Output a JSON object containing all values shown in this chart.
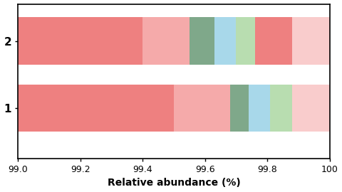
{
  "xlabel": "Relative abundance (%)",
  "xlim": [
    99.0,
    100.0
  ],
  "xticks": [
    99.0,
    99.2,
    99.4,
    99.6,
    99.8,
    100.0
  ],
  "xticklabels": [
    "99.0",
    "99.2",
    "99.4",
    "99.6",
    "99.8",
    "100"
  ],
  "yticks": [
    1,
    2
  ],
  "yticklabels": [
    "2",
    "1"
  ],
  "bar_height": 0.7,
  "background": "#ffffff",
  "rows": [
    {
      "y": 2,
      "label": "1",
      "segments": [
        {
          "start": 99.0,
          "end": 99.5,
          "color": "#EE8080"
        },
        {
          "start": 99.5,
          "end": 99.68,
          "color": "#F5AAAA"
        },
        {
          "start": 99.68,
          "end": 99.74,
          "color": "#7FA88A"
        },
        {
          "start": 99.74,
          "end": 99.81,
          "color": "#A8D8EA"
        },
        {
          "start": 99.81,
          "end": 99.88,
          "color": "#B8DDB0"
        },
        {
          "start": 99.88,
          "end": 100.0,
          "color": "#F9CCCC"
        }
      ]
    },
    {
      "y": 1,
      "label": "2",
      "segments": [
        {
          "start": 99.0,
          "end": 99.4,
          "color": "#EE8080"
        },
        {
          "start": 99.4,
          "end": 99.55,
          "color": "#F5AAAA"
        },
        {
          "start": 99.55,
          "end": 99.63,
          "color": "#7FA88A"
        },
        {
          "start": 99.63,
          "end": 99.7,
          "color": "#A8D8EA"
        },
        {
          "start": 99.7,
          "end": 99.76,
          "color": "#B8DDB0"
        },
        {
          "start": 99.76,
          "end": 99.88,
          "color": "#EE8080"
        },
        {
          "start": 99.88,
          "end": 100.0,
          "color": "#F9CCCC"
        }
      ]
    }
  ]
}
